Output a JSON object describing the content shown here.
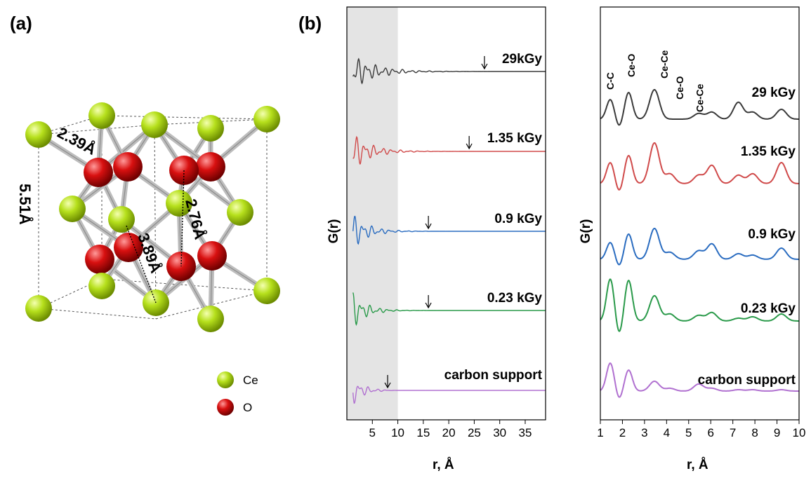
{
  "panel_a": {
    "label": "(a)",
    "distances": [
      "2.39Å",
      "2.76Å",
      "3.89Å",
      "5.51Å"
    ],
    "legend": [
      {
        "name": "Ce",
        "color": "#a8d818"
      },
      {
        "name": "O",
        "color": "#d01010"
      }
    ]
  },
  "panel_b": {
    "label": "(b)"
  },
  "chart_data": [
    {
      "type": "line",
      "xlabel": "r, Å",
      "ylabel": "G(r)",
      "xlim": [
        0,
        39
      ],
      "xticks": [
        5,
        10,
        15,
        20,
        25,
        30,
        35
      ],
      "shaded_region": [
        0,
        10
      ],
      "grid": false,
      "series": [
        {
          "name": "29kGy",
          "color": "#3a3a3a",
          "arrow_x": 27
        },
        {
          "name": "1.35 kGy",
          "color": "#d04a4a",
          "arrow_x": 24
        },
        {
          "name": "0.9 kGy",
          "color": "#2a6cc0",
          "arrow_x": 16
        },
        {
          "name": "0.23 kGy",
          "color": "#2a9a4a",
          "arrow_x": 16
        },
        {
          "name": "carbon support",
          "color": "#b070d0",
          "arrow_x": 8
        }
      ]
    },
    {
      "type": "line",
      "xlabel": "r, Å",
      "ylabel": "G(r)",
      "xlim": [
        1,
        10
      ],
      "xticks": [
        1,
        2,
        3,
        4,
        5,
        6,
        7,
        8,
        9,
        10
      ],
      "grid": false,
      "peak_labels": [
        {
          "label": "C-C",
          "x": 1.45
        },
        {
          "label": "Ce-O",
          "x": 2.4
        },
        {
          "label": "Ce-Ce",
          "x": 3.9
        },
        {
          "label": "Ce-O",
          "x": 4.6
        },
        {
          "label": "Ce-Ce",
          "x": 5.5
        }
      ],
      "series": [
        {
          "name": "29 kGy",
          "color": "#3a3a3a"
        },
        {
          "name": "1.35 kGy",
          "color": "#d04a4a"
        },
        {
          "name": "0.9 kGy",
          "color": "#2a6cc0"
        },
        {
          "name": "0.23 kGy",
          "color": "#2a9a4a"
        },
        {
          "name": "carbon support",
          "color": "#b070d0"
        }
      ]
    }
  ]
}
